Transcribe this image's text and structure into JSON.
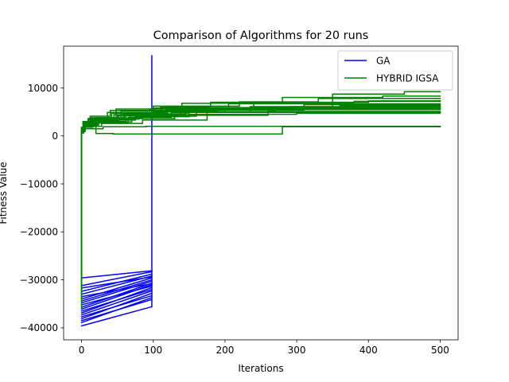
{
  "chart_data": {
    "type": "line",
    "title": "Comparison of Algorithms for 20 runs",
    "xlabel": "Iterations",
    "ylabel": "Fitness Value",
    "xlim": [
      -25,
      525
    ],
    "ylim": [
      -42500,
      18700
    ],
    "xticks": [
      0,
      100,
      200,
      300,
      400,
      500
    ],
    "yticks": [
      -40000,
      -30000,
      -20000,
      -10000,
      0,
      10000
    ],
    "xtick_labels": [
      "0",
      "100",
      "200",
      "300",
      "400",
      "500"
    ],
    "ytick_labels": [
      "−40000",
      "−30000",
      "−20000",
      "−10000",
      "0",
      "10000"
    ],
    "grid": false,
    "legend_position": "top-right",
    "legend": [
      {
        "label": "GA",
        "color": "#0000ff"
      },
      {
        "label": "HYBRID IGSA",
        "color": "#008000"
      }
    ],
    "series": [
      {
        "name": "GA",
        "color": "#0000ff",
        "runs": [
          {
            "x": [
              0,
              98
            ],
            "y": [
              -39600,
              -35600
            ]
          },
          {
            "x": [
              0,
              98
            ],
            "y": [
              -38900,
              -33700
            ]
          },
          {
            "x": [
              0,
              98
            ],
            "y": [
              -38500,
              -34100
            ]
          },
          {
            "x": [
              0,
              98
            ],
            "y": [
              -38100,
              -32800
            ]
          },
          {
            "x": [
              0,
              98
            ],
            "y": [
              -37700,
              -33300
            ]
          },
          {
            "x": [
              0,
              98
            ],
            "y": [
              -37300,
              -32300
            ]
          },
          {
            "x": [
              0,
              98
            ],
            "y": [
              -36900,
              -31600
            ]
          },
          {
            "x": [
              0,
              98
            ],
            "y": [
              -36500,
              -32000
            ]
          },
          {
            "x": [
              0,
              98
            ],
            "y": [
              -36100,
              -31000
            ]
          },
          {
            "x": [
              0,
              98
            ],
            "y": [
              -35700,
              -30700
            ]
          },
          {
            "x": [
              0,
              98
            ],
            "y": [
              -35200,
              -31300
            ]
          },
          {
            "x": [
              0,
              98
            ],
            "y": [
              -34800,
              -30300
            ]
          },
          {
            "x": [
              0,
              98
            ],
            "y": [
              -34400,
              -30000
            ]
          },
          {
            "x": [
              0,
              98
            ],
            "y": [
              -34000,
              -29600
            ]
          },
          {
            "x": [
              0,
              98
            ],
            "y": [
              -33500,
              -30800
            ]
          },
          {
            "x": [
              0,
              98
            ],
            "y": [
              -33000,
              -29200
            ]
          },
          {
            "x": [
              0,
              98
            ],
            "y": [
              -32400,
              -28800
            ]
          },
          {
            "x": [
              0,
              98
            ],
            "y": [
              -31700,
              -29400
            ]
          },
          {
            "x": [
              0,
              98
            ],
            "y": [
              -31200,
              -28300
            ]
          },
          {
            "x": [
              0,
              98
            ],
            "y": [
              -29600,
              -28100
            ]
          },
          {
            "x": [
              98,
              98
            ],
            "y": [
              -35600,
              16700
            ]
          }
        ]
      },
      {
        "name": "HYBRID IGSA",
        "color": "#008000",
        "runs": [
          {
            "x": [
              0,
              0,
              3,
              3,
              20,
              20,
              60,
              60,
              120,
              120,
              250,
              250,
              500
            ],
            "y": [
              -36000,
              1200,
              1200,
              2400,
              2400,
              3800,
              3800,
              4800,
              4800,
              5500,
              5500,
              6000,
              6000
            ]
          },
          {
            "x": [
              0,
              0,
              2,
              2,
              15,
              15,
              50,
              50,
              100,
              100,
              200,
              200,
              360,
              360,
              500
            ],
            "y": [
              -34000,
              800,
              800,
              2000,
              2000,
              3000,
              3000,
              4200,
              4200,
              5000,
              5000,
              5800,
              5800,
              6300,
              6300
            ]
          },
          {
            "x": [
              0,
              0,
              4,
              4,
              25,
              25,
              80,
              80,
              150,
              150,
              300,
              300,
              500
            ],
            "y": [
              -32000,
              1500,
              1500,
              2800,
              2800,
              3500,
              3500,
              4000,
              4000,
              4500,
              4500,
              4700,
              4700
            ]
          },
          {
            "x": [
              0,
              0,
              2,
              2,
              18,
              18,
              55,
              55,
              110,
              110,
              180,
              180,
              400,
              400,
              500
            ],
            "y": [
              -30000,
              1000,
              1000,
              2500,
              2500,
              3600,
              3600,
              5200,
              5200,
              6000,
              6000,
              7000,
              7000,
              7300,
              7300
            ]
          },
          {
            "x": [
              0,
              0,
              3,
              3,
              30,
              30,
              90,
              90,
              200,
              200,
              500
            ],
            "y": [
              -28000,
              600,
              600,
              1500,
              1500,
              1900,
              1900,
              2000,
              2000,
              2000,
              2000
            ]
          },
          {
            "x": [
              0,
              0,
              2,
              2,
              10,
              10,
              45,
              45,
              95,
              95,
              140,
              140,
              280,
              280,
              420,
              420,
              500
            ],
            "y": [
              -26000,
              1400,
              1400,
              2600,
              2600,
              3400,
              3400,
              4400,
              4400,
              5600,
              5600,
              6800,
              6800,
              8000,
              8000,
              8300,
              8300
            ]
          },
          {
            "x": [
              0,
              0,
              5,
              5,
              22,
              22,
              70,
              70,
              130,
              130,
              260,
              260,
              500
            ],
            "y": [
              -24000,
              900,
              900,
              2200,
              2200,
              2900,
              2900,
              3600,
              3600,
              4300,
              4300,
              5100,
              5100
            ]
          },
          {
            "x": [
              0,
              0,
              2,
              2,
              12,
              12,
              40,
              40,
              100,
              100,
              220,
              220,
              330,
              330,
              500
            ],
            "y": [
              -22000,
              1700,
              1700,
              3000,
              3000,
              4100,
              4100,
              5300,
              5300,
              6200,
              6200,
              7100,
              7100,
              7800,
              7800
            ]
          },
          {
            "x": [
              0,
              0,
              3,
              3,
              14,
              14,
              48,
              48,
              102,
              102,
              170,
              170,
              500
            ],
            "y": [
              -20000,
              1100,
              1100,
              2300,
              2300,
              3200,
              3200,
              5600,
              5600,
              5800,
              5800,
              5900,
              5900
            ]
          },
          {
            "x": [
              0,
              0,
              2,
              2,
              16,
              16,
              65,
              65,
              125,
              125,
              235,
              235,
              350,
              350,
              450,
              450,
              500
            ],
            "y": [
              -18000,
              700,
              700,
              1800,
              1800,
              2700,
              2700,
              3900,
              3900,
              4900,
              4900,
              6100,
              6100,
              8700,
              8700,
              9200,
              9200
            ]
          },
          {
            "x": [
              0,
              0,
              3,
              3,
              20,
              20,
              44,
              44,
              280,
              280,
              500
            ],
            "y": [
              -16000,
              1300,
              1300,
              2100,
              2100,
              500,
              500,
              400,
              400,
              1900,
              1900
            ]
          },
          {
            "x": [
              0,
              0,
              4,
              4,
              26,
              26,
              75,
              75,
              160,
              160,
              310,
              310,
              500
            ],
            "y": [
              -14000,
              1600,
              1600,
              2700,
              2700,
              3300,
              3300,
              4100,
              4100,
              5400,
              5400,
              6500,
              6500
            ]
          },
          {
            "x": [
              0,
              0,
              2,
              2,
              11,
              11,
              38,
              38,
              85,
              85,
              150,
              150,
              270,
              270,
              500
            ],
            "y": [
              -12000,
              900,
              900,
              1900,
              1900,
              2800,
              2800,
              3700,
              3700,
              4600,
              4600,
              5300,
              5300,
              5500,
              5500
            ]
          },
          {
            "x": [
              0,
              0,
              3,
              3,
              17,
              17,
              52,
              52,
              118,
              118,
              205,
              205,
              500
            ],
            "y": [
              -10000,
              1200,
              1200,
              2400,
              2400,
              3100,
              3100,
              4400,
              4400,
              5900,
              5900,
              6700,
              6700
            ]
          },
          {
            "x": [
              0,
              0,
              2,
              2,
              13,
              13,
              42,
              42,
              98,
              98,
              190,
              190,
              320,
              320,
              500
            ],
            "y": [
              -8000,
              1800,
              1800,
              2900,
              2900,
              3800,
              3800,
              4700,
              4700,
              5200,
              5200,
              5600,
              5600,
              5700,
              5700
            ]
          },
          {
            "x": [
              0,
              0,
              5,
              5,
              28,
              28,
              85,
              85,
              175,
              175,
              500
            ],
            "y": [
              -6000,
              1000,
              1000,
              2000,
              2000,
              2600,
              2600,
              3300,
              3300,
              4900,
              4900
            ]
          },
          {
            "x": [
              0,
              0,
              2,
              2,
              19,
              19,
              58,
              58,
              112,
              112,
              240,
              240,
              380,
              380,
              500
            ],
            "y": [
              -4000,
              1400,
              1400,
              2500,
              2500,
              3700,
              3700,
              4600,
              4600,
              5700,
              5700,
              6900,
              6900,
              7200,
              7200
            ]
          },
          {
            "x": [
              0,
              0,
              3,
              3,
              21,
              21,
              62,
              62,
              138,
              138,
              500
            ],
            "y": [
              -3000,
              800,
              800,
              2200,
              2200,
              3000,
              3000,
              4300,
              4300,
              5000,
              5000
            ]
          },
          {
            "x": [
              0,
              0,
              4,
              4,
              24,
              24,
              68,
              68,
              145,
              145,
              290,
              290,
              500
            ],
            "y": [
              -2000,
              1100,
              1100,
              2300,
              2300,
              3400,
              3400,
              4500,
              4500,
              5400,
              5400,
              6100,
              6100
            ]
          },
          {
            "x": [
              0,
              0,
              2,
              2,
              9,
              9,
              36,
              36,
              92,
              92,
              165,
              165,
              500
            ],
            "y": [
              -1000,
              1300,
              1300,
              2600,
              2600,
              3600,
              3600,
              4900,
              4900,
              5300,
              5300,
              5500,
              5500
            ]
          }
        ]
      }
    ]
  }
}
